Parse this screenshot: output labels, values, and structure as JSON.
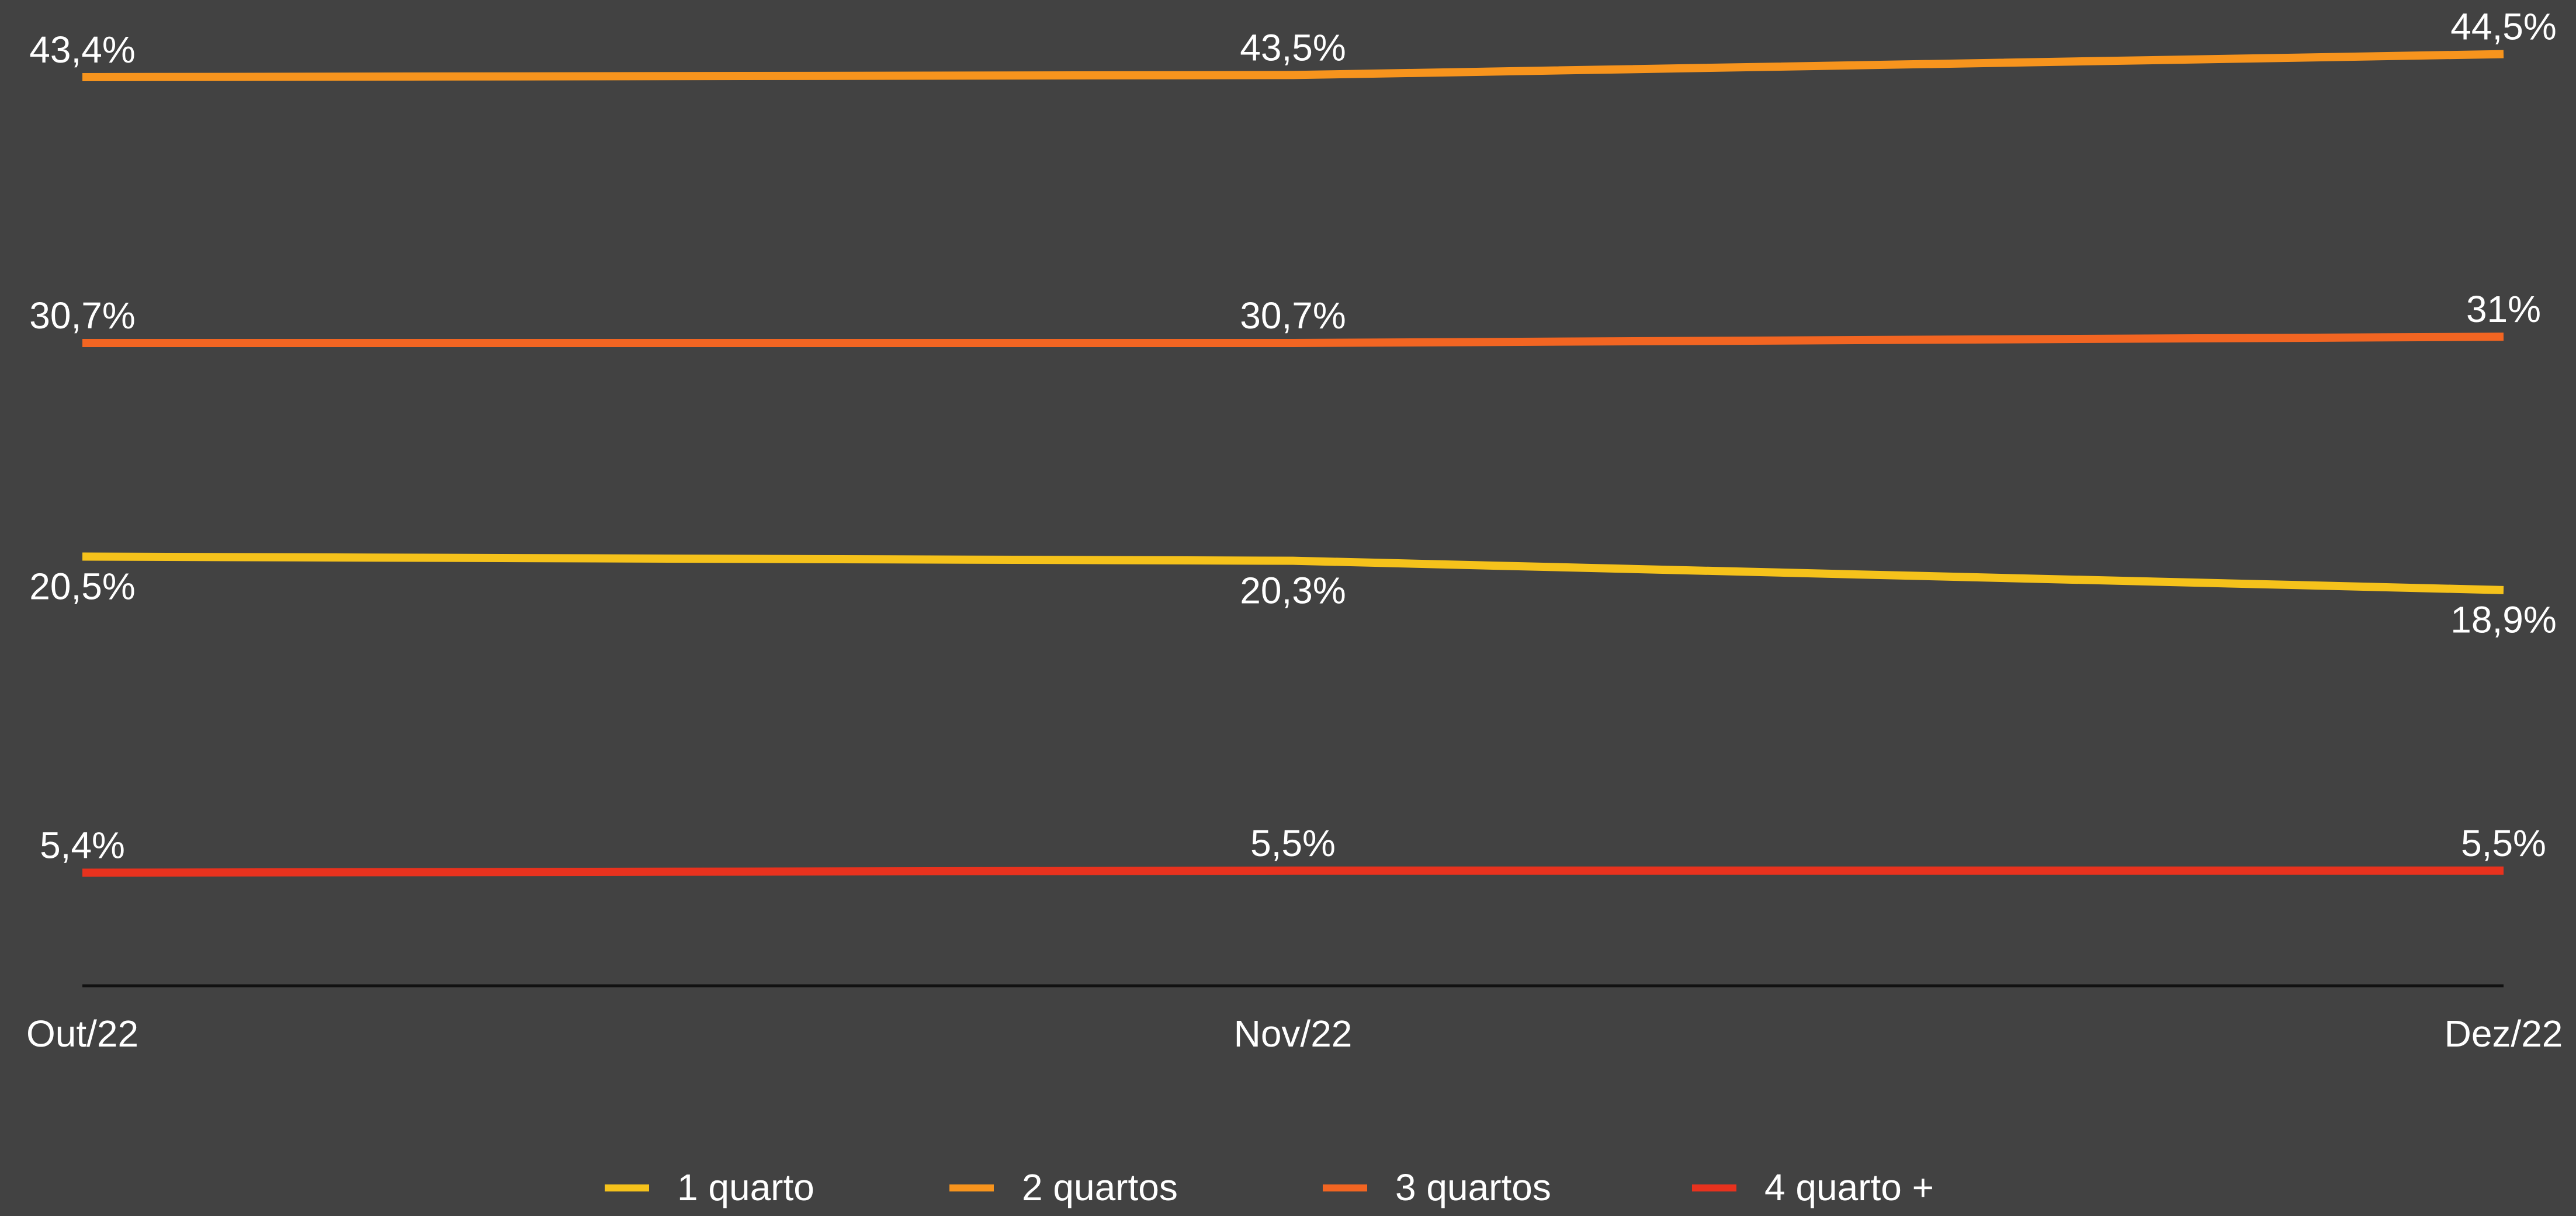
{
  "chart_data": {
    "type": "line",
    "categories": [
      "Out/22",
      "Nov/22",
      "Dez/22"
    ],
    "series": [
      {
        "name": "1 quarto",
        "color": "#f5c21b",
        "values": [
          20.5,
          20.3,
          18.9
        ],
        "value_labels": [
          "20,5%",
          "20,3%",
          "18,9%"
        ]
      },
      {
        "name": "2 quartos",
        "color": "#f7941d",
        "values": [
          43.4,
          43.5,
          44.5
        ],
        "value_labels": [
          "43,4%",
          "43,5%",
          "44,5%"
        ]
      },
      {
        "name": "3 quartos",
        "color": "#f26522",
        "values": [
          30.7,
          30.7,
          31
        ],
        "value_labels": [
          "30,7%",
          "30,7%",
          "31%"
        ]
      },
      {
        "name": "4 quarto +",
        "color": "#e8321e",
        "values": [
          5.4,
          5.5,
          5.5
        ],
        "value_labels": [
          "5,4%",
          "5,5%",
          "5,5%"
        ]
      }
    ],
    "ylim": [
      0,
      47
    ],
    "legend": "bottom"
  }
}
